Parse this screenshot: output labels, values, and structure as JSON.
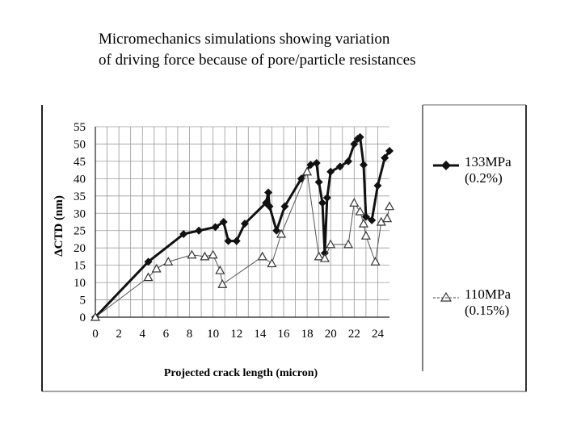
{
  "slide": {
    "title_line1": "Micromechanics simulations showing variation",
    "title_line2": "of driving force because of pore/particle resistances"
  },
  "chart_data": {
    "type": "line",
    "xlabel": "Projected crack length (micron)",
    "ylabel": "ΔCTD (nm)",
    "xlim": [
      0,
      25
    ],
    "ylim": [
      0,
      55
    ],
    "xticks": [
      0,
      2,
      4,
      6,
      8,
      10,
      12,
      14,
      16,
      18,
      20,
      22,
      24
    ],
    "yticks": [
      0,
      5,
      10,
      15,
      20,
      25,
      30,
      35,
      40,
      45,
      50,
      55
    ],
    "grid": true,
    "legend_position": "right",
    "series": [
      {
        "name": "133MPa",
        "label_line1": "133MPa",
        "label_line2": "(0.2%)",
        "marker": "diamond",
        "color": "#111111",
        "x": [
          0,
          4.5,
          7.5,
          8.8,
          10.2,
          10.9,
          11.3,
          12.0,
          12.7,
          14.5,
          14.7,
          14.8,
          15.4,
          16.1,
          17.5,
          18.3,
          18.8,
          19.0,
          19.3,
          19.5,
          19.7,
          20.0,
          20.8,
          21.5,
          22.0,
          22.3,
          22.5,
          22.8,
          23.0,
          23.5,
          24.0,
          24.6,
          25.2
        ],
        "y": [
          0,
          16,
          24,
          25,
          26,
          27.5,
          22,
          22,
          27,
          33,
          36,
          32,
          25,
          32,
          40,
          44,
          44.5,
          39,
          33,
          18.5,
          34.5,
          42,
          43.5,
          45,
          50,
          51.5,
          52,
          44,
          29,
          28,
          38,
          46,
          48
        ]
      },
      {
        "name": "110MPa",
        "label_line1": "110MPa",
        "label_line2": "(0.15%)",
        "marker": "triangle",
        "color": "#555555",
        "x": [
          0,
          4.5,
          5.2,
          6.2,
          8.2,
          9.3,
          10.0,
          10.6,
          10.8,
          14.2,
          15.0,
          15.8,
          18.0,
          19.0,
          19.5,
          20.0,
          21.5,
          22.0,
          22.5,
          22.8,
          23.0,
          23.8,
          24.3,
          24.8,
          25.5
        ],
        "y": [
          0,
          11.5,
          14,
          16,
          18,
          17.5,
          18,
          13.5,
          9.5,
          17.5,
          15.5,
          24,
          42,
          17.5,
          17,
          21,
          21,
          33,
          30.5,
          27,
          23.5,
          16,
          27.5,
          28.5,
          32
        ]
      }
    ]
  }
}
